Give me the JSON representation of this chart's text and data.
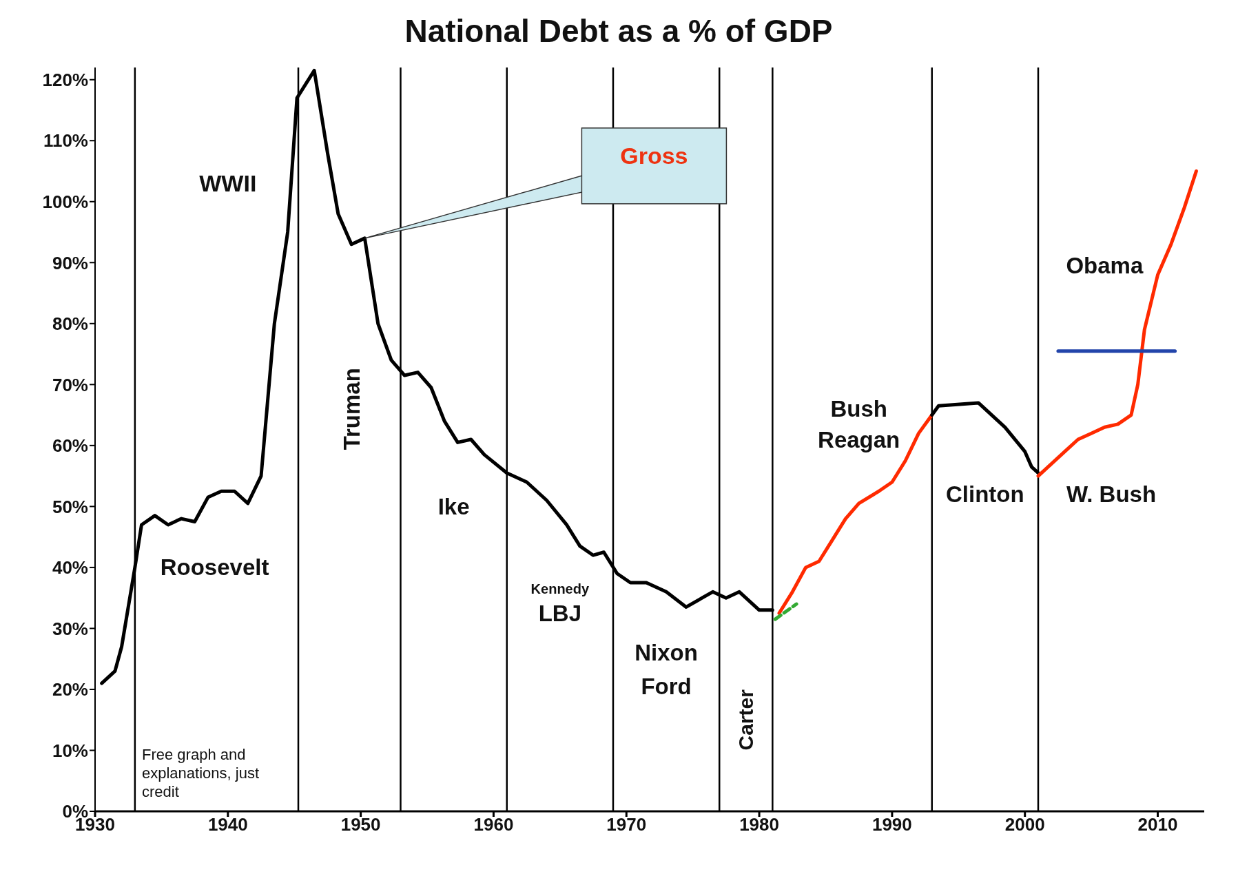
{
  "chart_data": {
    "type": "line",
    "title": "National Debt as a % of GDP",
    "xlim": [
      1930,
      2013.5
    ],
    "xticks": [
      1930,
      1940,
      1950,
      1960,
      1970,
      1980,
      1990,
      2000,
      2010
    ],
    "ylim": [
      0,
      122
    ],
    "yticks": [
      {
        "value": 0,
        "label": "0%"
      },
      {
        "value": 10,
        "label": "10%"
      },
      {
        "value": 20,
        "label": "20%"
      },
      {
        "value": 30,
        "label": "30%"
      },
      {
        "value": 40,
        "label": "40%"
      },
      {
        "value": 50,
        "label": "50%"
      },
      {
        "value": 60,
        "label": "60%"
      },
      {
        "value": 70,
        "label": "70%"
      },
      {
        "value": 80,
        "label": "80%"
      },
      {
        "value": 90,
        "label": "90%"
      },
      {
        "value": 100,
        "label": "100%"
      },
      {
        "value": 110,
        "label": "110%"
      },
      {
        "value": 120,
        "label": "120%"
      }
    ],
    "series": [
      {
        "color": "#000000",
        "x": [
          1930.5,
          1931.5,
          1932,
          1933,
          1933.5,
          1934.5,
          1935.5,
          1936.5,
          1937.5,
          1938.5,
          1939.5,
          1940.5,
          1941.5,
          1942.5,
          1943.5,
          1944.5,
          1945.2,
          1946.5,
          1947.5,
          1948.3,
          1949.3,
          1950.3,
          1951.3,
          1952.3,
          1953.3,
          1954.3,
          1955.3,
          1956.3,
          1957.3,
          1958.3,
          1959.3,
          1961,
          1962.5,
          1964,
          1965.5,
          1966.5,
          1967.5,
          1968.3,
          1969.3,
          1970.3,
          1971.5,
          1973,
          1974.5,
          1976.5,
          1977.5,
          1978.5,
          1980,
          1981
        ],
        "values": [
          21,
          23,
          27,
          40,
          47,
          48.5,
          47,
          48,
          47.5,
          51.5,
          52.5,
          52.5,
          50.5,
          55,
          80,
          95,
          117,
          121.5,
          108,
          98,
          93,
          94,
          80,
          74,
          71.5,
          72,
          69.5,
          64,
          60.5,
          61,
          58.5,
          55.5,
          54,
          51,
          47,
          43.5,
          42,
          42.5,
          39,
          37.5,
          37.5,
          36,
          33.5,
          36,
          35,
          36,
          33,
          33
        ]
      },
      {
        "color": "#ff2a00",
        "x": [
          1981.5,
          1982.5,
          1983.5,
          1984.5,
          1985.5,
          1986.5,
          1987.5,
          1989,
          1990,
          1991,
          1992,
          1993
        ],
        "values": [
          32.5,
          36,
          40,
          41,
          44.5,
          48,
          50.5,
          52.5,
          54,
          57.5,
          62,
          65
        ]
      },
      {
        "color": "#000000",
        "x": [
          1993,
          1993.5,
          1996.5,
          1998.5,
          2000,
          2000.5,
          2001
        ],
        "values": [
          65,
          66.5,
          67,
          63,
          59,
          56.5,
          55.5
        ]
      },
      {
        "color": "#ff2a00",
        "x": [
          2001,
          2002,
          2003,
          2004,
          2005,
          2006,
          2007,
          2008,
          2008.5,
          2009,
          2010,
          2011,
          2012,
          2012.9
        ],
        "values": [
          55,
          57,
          59,
          61,
          62,
          63,
          63.5,
          65,
          70,
          79,
          88,
          93,
          99,
          105
        ]
      },
      {
        "color": "#33aa33",
        "line_style": "dashed",
        "x": [
          1981.2,
          1982.8
        ],
        "values": [
          31.5,
          34
        ]
      },
      {
        "color": "#2244aa",
        "x": [
          2002.5,
          2011.3
        ],
        "values": [
          75.5,
          75.5
        ]
      }
    ],
    "ref_lines": [
      {
        "axis": "x",
        "value": 1933
      },
      {
        "axis": "x",
        "value": 1945.3
      },
      {
        "axis": "x",
        "value": 1953
      },
      {
        "axis": "x",
        "value": 1961
      },
      {
        "axis": "x",
        "value": 1969
      },
      {
        "axis": "x",
        "value": 1977
      },
      {
        "axis": "x",
        "value": 1981
      },
      {
        "axis": "x",
        "value": 1993
      },
      {
        "axis": "x",
        "value": 2001
      }
    ],
    "annotations": [
      {
        "text": "Gross",
        "x": 1950.3,
        "y": 94
      },
      "WWII",
      "Roosevelt",
      "Truman",
      "Ike",
      "Kennedy",
      "LBJ",
      "Nixon",
      "Ford",
      "Carter",
      "Bush",
      "Reagan",
      "Clinton",
      "W. Bush",
      "Obama",
      "Free graph and explanations, just credit"
    ]
  }
}
